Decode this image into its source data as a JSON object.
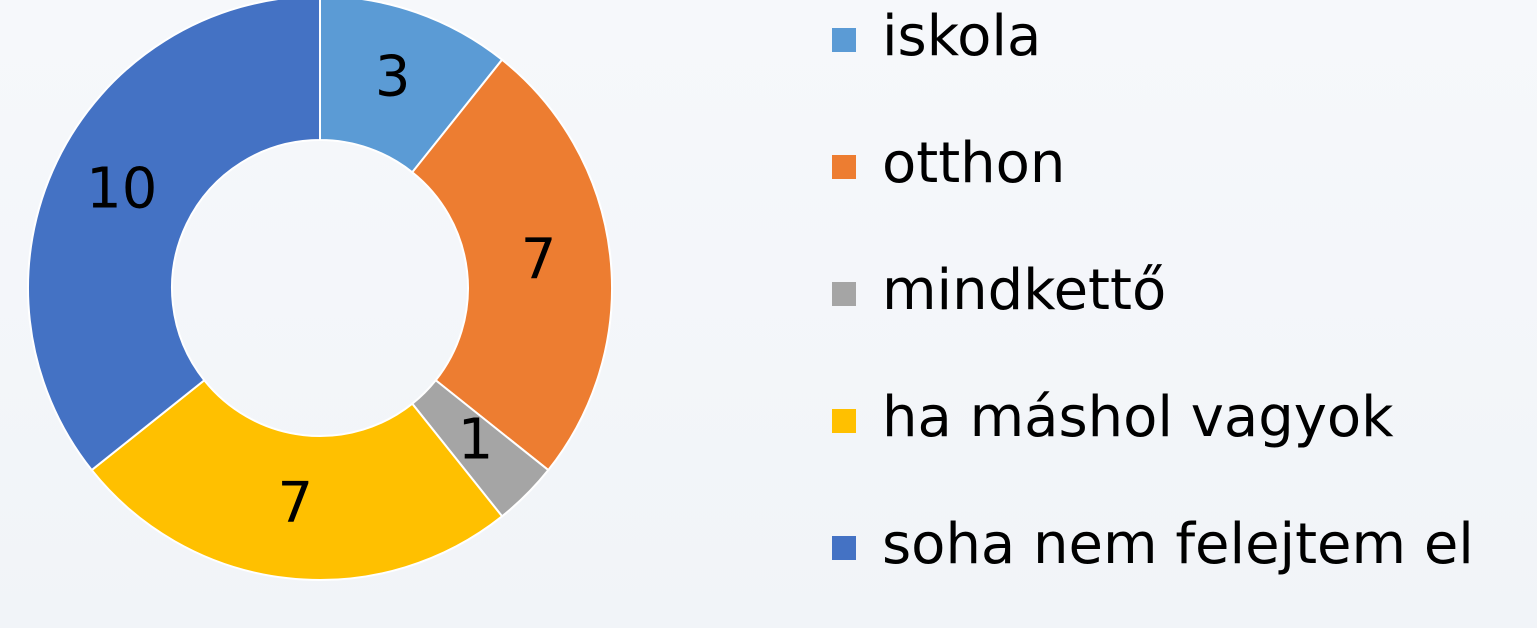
{
  "chart_data": {
    "type": "donut",
    "categories": [
      "iskola",
      "otthon",
      "mindkettő",
      "ha máshol vagyok",
      "soha nem felejtem el"
    ],
    "values": [
      3,
      7,
      1,
      7,
      10
    ],
    "colors": [
      "#5b9bd5",
      "#ed7d31",
      "#a5a5a5",
      "#ffc000",
      "#4472c4"
    ],
    "legend": "right"
  }
}
